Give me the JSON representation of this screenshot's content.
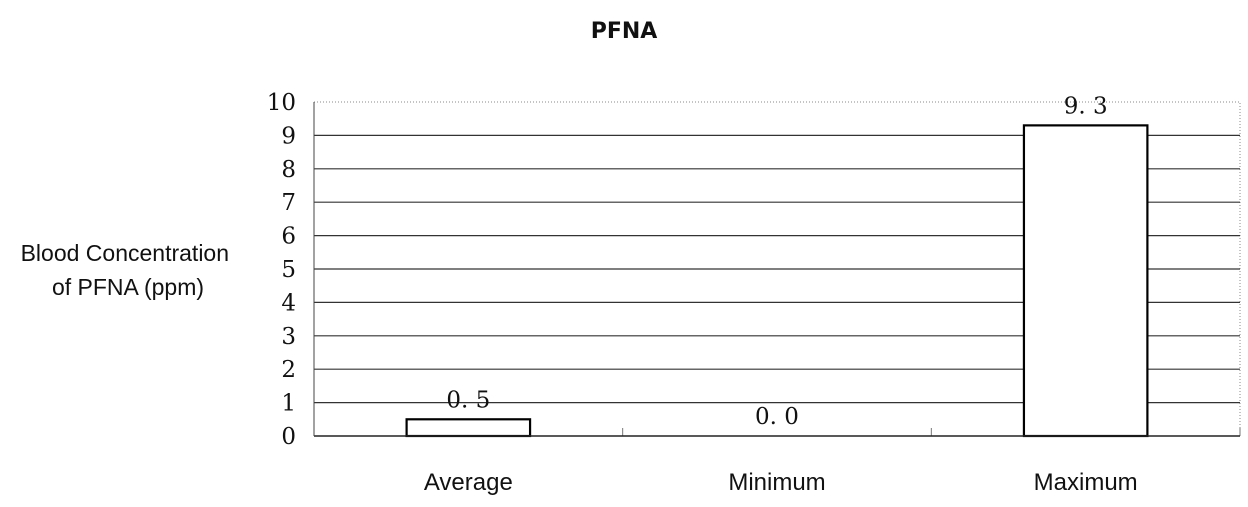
{
  "chart_data": {
    "type": "bar",
    "title": "PFNA",
    "ylabel_lines": [
      "Blood Concentration",
      "of PFNA (ppm)"
    ],
    "xlabel": "",
    "categories": [
      "Average",
      "Minimum",
      "Maximum"
    ],
    "values": [
      0.5,
      0.0,
      9.3
    ],
    "data_labels": [
      "0. 5",
      "0. 0",
      "9. 3"
    ],
    "ylim": [
      0,
      10
    ],
    "yticks": [
      0,
      1,
      2,
      3,
      4,
      5,
      6,
      7,
      8,
      9,
      10
    ],
    "grid": true,
    "legend": "none",
    "colors": {
      "bar_fill": "#ffffff",
      "bar_stroke": "#000000",
      "grid": "#333333"
    }
  }
}
